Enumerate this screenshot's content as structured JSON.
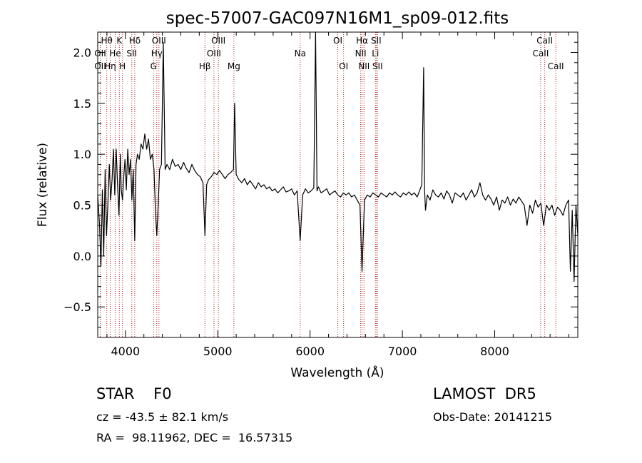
{
  "chart_data": {
    "type": "line",
    "title": "spec-57007-GAC097N16M1_sp09-012.fits",
    "xlabel": "Wavelength (Å)",
    "ylabel": "Flux (relative)",
    "xlim": [
      3700,
      8900
    ],
    "ylim": [
      -0.8,
      2.2
    ],
    "x_ticks": [
      4000,
      5000,
      6000,
      7000,
      8000
    ],
    "x_tick_labels": [
      "4000",
      "5000",
      "6000",
      "7000",
      "8000"
    ],
    "y_ticks": [
      -0.5,
      0.0,
      0.5,
      1.0,
      1.5,
      2.0
    ],
    "y_tick_labels": [
      "−0.5",
      "0.0",
      "0.5",
      "1.0",
      "1.5",
      "2.0"
    ],
    "grid": false,
    "series": [
      {
        "color": "#000000",
        "x": [
          3700,
          3720,
          3735,
          3750,
          3765,
          3780,
          3795,
          3810,
          3825,
          3840,
          3855,
          3870,
          3885,
          3900,
          3915,
          3930,
          3945,
          3955,
          3968,
          3980,
          3995,
          4010,
          4025,
          4040,
          4055,
          4070,
          4085,
          4101,
          4115,
          4130,
          4150,
          4170,
          4190,
          4210,
          4230,
          4250,
          4270,
          4290,
          4310,
          4325,
          4340,
          4355,
          4370,
          4390,
          4410,
          4430,
          4450,
          4480,
          4510,
          4540,
          4570,
          4600,
          4630,
          4660,
          4690,
          4720,
          4750,
          4780,
          4810,
          4840,
          4861,
          4880,
          4900,
          4930,
          4960,
          4990,
          5020,
          5050,
          5080,
          5110,
          5140,
          5170,
          5183,
          5200,
          5230,
          5260,
          5290,
          5320,
          5350,
          5380,
          5410,
          5440,
          5470,
          5500,
          5530,
          5560,
          5590,
          5620,
          5650,
          5680,
          5710,
          5740,
          5770,
          5800,
          5830,
          5860,
          5893,
          5920,
          5950,
          5980,
          6010,
          6040,
          6060,
          6075,
          6090,
          6120,
          6150,
          6180,
          6210,
          6240,
          6270,
          6300,
          6330,
          6360,
          6390,
          6420,
          6450,
          6480,
          6510,
          6540,
          6563,
          6590,
          6620,
          6650,
          6680,
          6710,
          6740,
          6770,
          6800,
          6830,
          6860,
          6890,
          6920,
          6950,
          6980,
          7010,
          7040,
          7070,
          7100,
          7130,
          7160,
          7190,
          7210,
          7230,
          7240,
          7250,
          7270,
          7300,
          7330,
          7360,
          7390,
          7420,
          7450,
          7480,
          7510,
          7540,
          7570,
          7600,
          7630,
          7660,
          7690,
          7720,
          7750,
          7780,
          7810,
          7840,
          7870,
          7900,
          7930,
          7960,
          7990,
          8020,
          8050,
          8080,
          8110,
          8140,
          8170,
          8200,
          8230,
          8260,
          8290,
          8320,
          8350,
          8380,
          8410,
          8440,
          8470,
          8500,
          8530,
          8560,
          8590,
          8620,
          8650,
          8680,
          8710,
          8740,
          8770,
          8800,
          8820,
          8840,
          8860,
          8880,
          8900
        ],
        "y": [
          0.6,
          0.3,
          -0.1,
          0.65,
          0.0,
          0.85,
          0.2,
          0.5,
          0.9,
          0.55,
          0.75,
          1.05,
          0.6,
          1.05,
          0.7,
          0.4,
          1.0,
          0.65,
          0.55,
          0.75,
          0.95,
          0.65,
          1.05,
          0.8,
          0.95,
          0.55,
          0.85,
          0.15,
          0.9,
          1.0,
          0.95,
          1.1,
          1.05,
          1.2,
          1.05,
          1.15,
          0.95,
          1.0,
          0.85,
          0.45,
          0.2,
          0.5,
          0.85,
          0.9,
          2.1,
          0.85,
          0.9,
          0.85,
          0.95,
          0.88,
          0.9,
          0.85,
          0.92,
          0.86,
          0.82,
          0.9,
          0.84,
          0.8,
          0.78,
          0.72,
          0.2,
          0.7,
          0.75,
          0.78,
          0.82,
          0.8,
          0.84,
          0.8,
          0.76,
          0.8,
          0.82,
          0.85,
          1.5,
          0.8,
          0.75,
          0.72,
          0.76,
          0.7,
          0.74,
          0.7,
          0.66,
          0.72,
          0.68,
          0.7,
          0.66,
          0.68,
          0.64,
          0.66,
          0.62,
          0.65,
          0.68,
          0.63,
          0.64,
          0.66,
          0.6,
          0.64,
          0.15,
          0.6,
          0.66,
          0.62,
          0.64,
          0.67,
          2.2,
          0.64,
          0.68,
          0.62,
          0.64,
          0.66,
          0.6,
          0.62,
          0.64,
          0.6,
          0.58,
          0.62,
          0.6,
          0.62,
          0.58,
          0.6,
          0.55,
          0.5,
          -0.15,
          0.55,
          0.6,
          0.58,
          0.62,
          0.6,
          0.58,
          0.62,
          0.6,
          0.58,
          0.62,
          0.6,
          0.63,
          0.6,
          0.58,
          0.62,
          0.6,
          0.63,
          0.6,
          0.62,
          0.58,
          0.65,
          0.7,
          1.85,
          0.65,
          0.45,
          0.6,
          0.55,
          0.65,
          0.6,
          0.58,
          0.62,
          0.56,
          0.64,
          0.6,
          0.52,
          0.62,
          0.6,
          0.58,
          0.62,
          0.55,
          0.6,
          0.65,
          0.58,
          0.62,
          0.72,
          0.6,
          0.55,
          0.6,
          0.56,
          0.5,
          0.58,
          0.45,
          0.55,
          0.52,
          0.58,
          0.5,
          0.56,
          0.52,
          0.58,
          0.54,
          0.5,
          0.3,
          0.5,
          0.42,
          0.55,
          0.48,
          0.52,
          0.3,
          0.5,
          0.45,
          0.5,
          0.4,
          0.48,
          0.45,
          0.4,
          0.5,
          0.55,
          -0.15,
          0.45,
          -0.25,
          0.5,
          0.2
        ]
      }
    ],
    "annotations": [
      {
        "label": "Hθ",
        "x": 3798,
        "row": 0
      },
      {
        "label": "OII",
        "x": 3727,
        "row": 1
      },
      {
        "label": "OII",
        "x": 3727,
        "row": 2
      },
      {
        "label": "Hη",
        "x": 3835,
        "row": 2
      },
      {
        "label": "K",
        "x": 3934,
        "row": 0
      },
      {
        "label": "He",
        "x": 3889,
        "row": 1
      },
      {
        "label": "H",
        "x": 3968,
        "row": 2
      },
      {
        "label": "Hδ",
        "x": 4101,
        "row": 0
      },
      {
        "label": "SII",
        "x": 4069,
        "row": 1
      },
      {
        "label": "OIII",
        "x": 4363,
        "row": 0
      },
      {
        "label": "Hγ",
        "x": 4340,
        "row": 1
      },
      {
        "label": "G",
        "x": 4305,
        "row": 2
      },
      {
        "label": "OIII",
        "x": 5007,
        "row": 0
      },
      {
        "label": "OIII",
        "x": 4959,
        "row": 1
      },
      {
        "label": "Hβ",
        "x": 4861,
        "row": 2
      },
      {
        "label": "Mg",
        "x": 5175,
        "row": 2
      },
      {
        "label": "Na",
        "x": 5893,
        "row": 1
      },
      {
        "label": "OI",
        "x": 6300,
        "row": 0
      },
      {
        "label": "OI",
        "x": 6363,
        "row": 2
      },
      {
        "label": "Hα",
        "x": 6563,
        "row": 0
      },
      {
        "label": "SII",
        "x": 6716,
        "row": 0
      },
      {
        "label": "NII",
        "x": 6548,
        "row": 1
      },
      {
        "label": "Li",
        "x": 6708,
        "row": 1
      },
      {
        "label": "NII",
        "x": 6584,
        "row": 2
      },
      {
        "label": "SII",
        "x": 6731,
        "row": 2
      },
      {
        "label": "CaII",
        "x": 8542,
        "row": 0
      },
      {
        "label": "CaII",
        "x": 8498,
        "row": 1
      },
      {
        "label": "CaII",
        "x": 8662,
        "row": 2
      }
    ],
    "line_markers": [
      3727,
      3798,
      3835,
      3889,
      3934,
      3968,
      4069,
      4101,
      4305,
      4340,
      4363,
      4861,
      4959,
      5007,
      5175,
      5893,
      6300,
      6363,
      6548,
      6563,
      6584,
      6708,
      6716,
      6731,
      8498,
      8542,
      8662
    ],
    "marker_color": "#b22222"
  },
  "info": {
    "object_type": "STAR    F0",
    "survey": "LAMOST  DR5",
    "cz": "cz = -43.5 ± 82.1 km/s",
    "obs_date": "Obs-Date: 20141215",
    "radec": "RA =  98.11962, DEC =  16.57315"
  }
}
